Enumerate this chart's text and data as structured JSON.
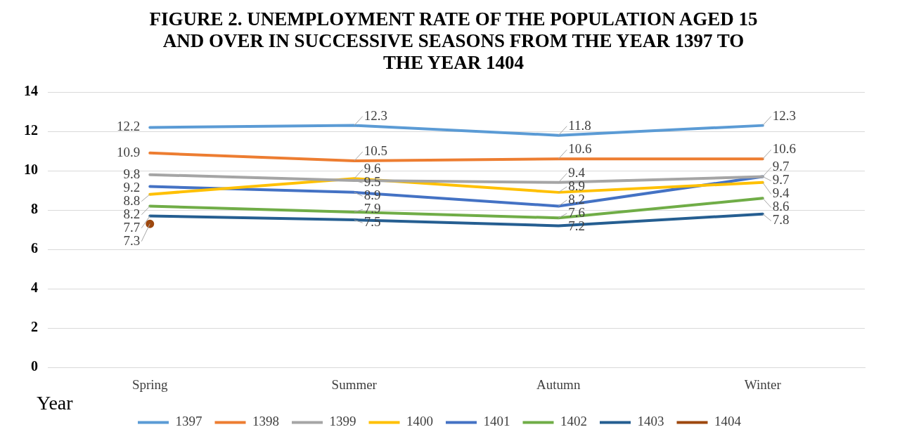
{
  "chart_data": {
    "type": "line",
    "title": "FIGURE 2. UNEMPLOYMENT RATE OF THE POPULATION AGED 15 AND OVER IN SUCCESSIVE SEASONS FROM THE YEAR 1397 TO THE YEAR 1404",
    "legend_title": "Year",
    "categories": [
      "Spring",
      "Summer",
      "Autumn",
      "Winter"
    ],
    "series": [
      {
        "name": "1397",
        "color": "#5b9bd5",
        "values": [
          12.2,
          12.3,
          11.8,
          12.3
        ]
      },
      {
        "name": "1398",
        "color": "#ed7d31",
        "values": [
          10.9,
          10.5,
          10.6,
          10.6
        ]
      },
      {
        "name": "1399",
        "color": "#a5a5a5",
        "values": [
          9.8,
          9.5,
          9.4,
          9.7
        ]
      },
      {
        "name": "1400",
        "color": "#ffc000",
        "values": [
          8.8,
          9.6,
          8.9,
          9.4
        ]
      },
      {
        "name": "1401",
        "color": "#4472c4",
        "values": [
          9.2,
          8.9,
          8.2,
          9.7
        ]
      },
      {
        "name": "1402",
        "color": "#70ad47",
        "values": [
          8.2,
          7.9,
          7.6,
          8.6
        ]
      },
      {
        "name": "1403",
        "color": "#255e91",
        "values": [
          7.7,
          7.5,
          7.2,
          7.8
        ]
      },
      {
        "name": "1404",
        "color": "#9e480e",
        "marker": "circle",
        "values": [
          7.3,
          null,
          null,
          null
        ]
      }
    ],
    "ylim": [
      0,
      14
    ],
    "yticks": [
      0,
      2,
      4,
      6,
      8,
      10,
      12,
      14
    ],
    "grid": "y",
    "legend": "bottom",
    "marker": "none",
    "line_style": "solid",
    "data_labels": true
  }
}
